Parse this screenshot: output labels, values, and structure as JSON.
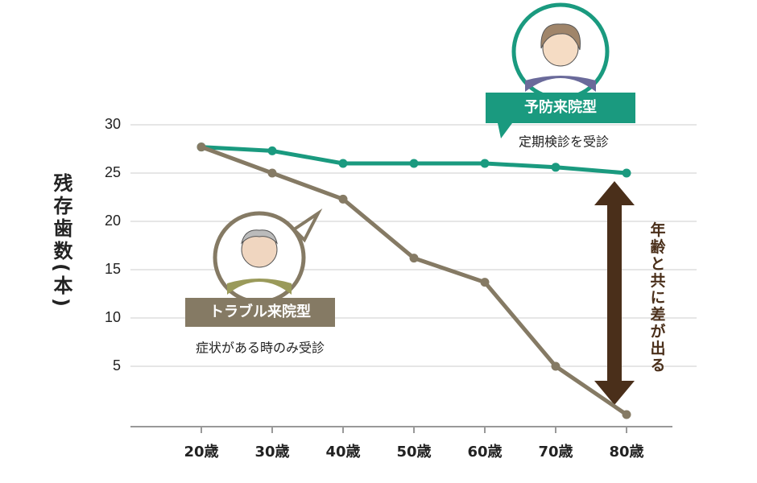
{
  "chart_data": {
    "type": "line",
    "y_label": "残存歯数(本)",
    "categories": [
      "20歳",
      "30歳",
      "40歳",
      "50歳",
      "60歳",
      "70歳",
      "80歳"
    ],
    "series": [
      {
        "name": "予防来院型",
        "description": "定期検診を受診",
        "color": "#1a9a7f",
        "values": [
          27.7,
          27.3,
          26,
          26,
          26,
          25.6,
          25
        ]
      },
      {
        "name": "トラブル来院型",
        "description": "症状がある時のみ受診",
        "color": "#857a64",
        "values": [
          27.7,
          25,
          22.3,
          16.2,
          13.7,
          5,
          0
        ]
      }
    ],
    "annotation": "年齢と共に差が出る",
    "ylim": [
      -1.25,
      30
    ],
    "yticks": [
      5,
      10,
      15,
      20,
      25,
      30
    ],
    "grid": true
  }
}
